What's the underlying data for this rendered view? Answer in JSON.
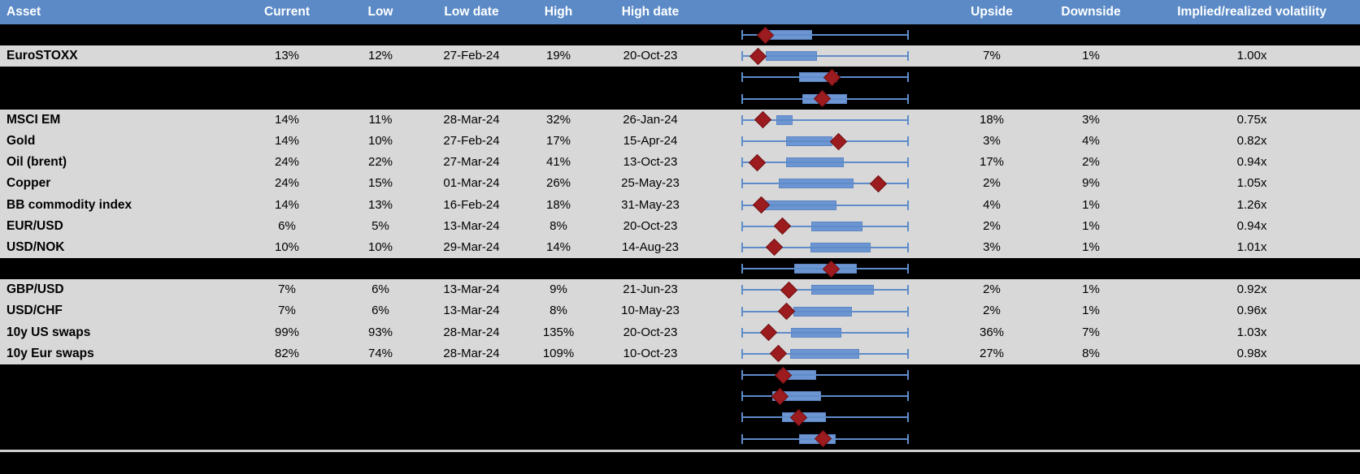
{
  "colors": {
    "header_bg": "#5B8AC7",
    "row_bg": "#D8D8D8",
    "black_bg": "#000000",
    "box_fill": "#6C95D1",
    "box_border": "#5C86C4",
    "whisker_line": "#5E8CC9",
    "marker_fill": "#9C1B1E",
    "marker_border": "#701114",
    "separator_line": "#CFCFCF",
    "text_color": "#000000",
    "header_text": "#FFFFFF"
  },
  "chart_data": {
    "type": "table",
    "embedded_chart_type": "horizontal boxplot per row; whiskers span the full low-high range (normalized 0-1); red diamond marks the current level; box_lo/box_hi/marker are fractions of the whisker span",
    "legend_position": "none",
    "grid": false,
    "columns": {
      "asset": "Asset",
      "current": "Current",
      "low": "Low",
      "low_date": "Low date",
      "high": "High",
      "high_date": "High date",
      "upside": "Upside",
      "downside": "Downside",
      "implied_realized": "Implied/realized volatility"
    },
    "rows": [
      {
        "box": {
          "lo": 0.16,
          "hi": 0.413,
          "marker": 0.141
        }
      },
      {
        "asset": "EuroSTOXX",
        "current": "13%",
        "low": "12%",
        "low_date": "27-Feb-24",
        "high": "19%",
        "high_date": "20-Oct-23",
        "upside": "7%",
        "downside": "1%",
        "implied_realized": "1.00x",
        "box": {
          "lo": 0.146,
          "hi": 0.442,
          "marker": 0.097
        }
      },
      {
        "box": {
          "lo": 0.345,
          "hi": 0.563,
          "marker": 0.539
        }
      },
      {
        "box": {
          "lo": 0.364,
          "hi": 0.621,
          "marker": 0.481
        }
      },
      {
        "asset": "MSCI EM",
        "current": "14%",
        "low": "11%",
        "low_date": "28-Mar-24",
        "high": "32%",
        "high_date": "26-Jan-24",
        "upside": "18%",
        "downside": "3%",
        "implied_realized": "0.75x",
        "box": {
          "lo": 0.209,
          "hi": 0.296,
          "marker": 0.126
        }
      },
      {
        "asset": "Gold",
        "current": "14%",
        "low": "10%",
        "low_date": "27-Feb-24",
        "high": "17%",
        "high_date": "15-Apr-24",
        "upside": "3%",
        "downside": "4%",
        "implied_realized": "0.82x",
        "box": {
          "lo": 0.267,
          "hi": 0.534,
          "marker": 0.578
        }
      },
      {
        "asset": "Oil (brent)",
        "current": "24%",
        "low": "22%",
        "low_date": "27-Mar-24",
        "high": "41%",
        "high_date": "13-Oct-23",
        "upside": "17%",
        "downside": "2%",
        "implied_realized": "0.94x",
        "box": {
          "lo": 0.267,
          "hi": 0.602,
          "marker": 0.092
        }
      },
      {
        "asset": "Copper",
        "current": "24%",
        "low": "15%",
        "low_date": "01-Mar-24",
        "high": "26%",
        "high_date": "25-May-23",
        "upside": "2%",
        "downside": "9%",
        "implied_realized": "1.05x",
        "box": {
          "lo": 0.223,
          "hi": 0.66,
          "marker": 0.82
        }
      },
      {
        "asset": "BB commodity index",
        "current": "14%",
        "low": "13%",
        "low_date": "16-Feb-24",
        "high": "18%",
        "high_date": "31-May-23",
        "upside": "4%",
        "downside": "1%",
        "implied_realized": "1.26x",
        "box": {
          "lo": 0.131,
          "hi": 0.558,
          "marker": 0.121
        }
      },
      {
        "asset": "EUR/USD",
        "current": "6%",
        "low": "5%",
        "low_date": "13-Mar-24",
        "high": "8%",
        "high_date": "20-Oct-23",
        "upside": "2%",
        "downside": "1%",
        "implied_realized": "0.94x",
        "box": {
          "lo": 0.417,
          "hi": 0.714,
          "marker": 0.243
        }
      },
      {
        "asset": "USD/NOK",
        "current": "10%",
        "low": "10%",
        "low_date": "29-Mar-24",
        "high": "14%",
        "high_date": "14-Aug-23",
        "upside": "3%",
        "downside": "1%",
        "implied_realized": "1.01x",
        "box": {
          "lo": 0.413,
          "hi": 0.762,
          "marker": 0.194
        }
      },
      {
        "box": {
          "lo": 0.316,
          "hi": 0.68,
          "marker": 0.534
        }
      },
      {
        "asset": "GBP/USD",
        "current": "7%",
        "low": "6%",
        "low_date": "13-Mar-24",
        "high": "9%",
        "high_date": "21-Jun-23",
        "upside": "2%",
        "downside": "1%",
        "implied_realized": "0.92x",
        "box": {
          "lo": 0.417,
          "hi": 0.781,
          "marker": 0.286
        }
      },
      {
        "asset": "USD/CHF",
        "current": "7%",
        "low": "6%",
        "low_date": "13-Mar-24",
        "high": "8%",
        "high_date": "10-May-23",
        "upside": "2%",
        "downside": "1%",
        "implied_realized": "0.96x",
        "box": {
          "lo": 0.311,
          "hi": 0.65,
          "marker": 0.267
        }
      },
      {
        "asset": "10y US swaps",
        "current": "99%",
        "low": "93%",
        "low_date": "28-Mar-24",
        "high": "135%",
        "high_date": "20-Oct-23",
        "upside": "36%",
        "downside": "7%",
        "implied_realized": "1.03x",
        "box": {
          "lo": 0.296,
          "hi": 0.587,
          "marker": 0.16
        }
      },
      {
        "asset": "10y Eur swaps",
        "current": "82%",
        "low": "74%",
        "low_date": "28-Mar-24",
        "high": "109%",
        "high_date": "10-Oct-23",
        "upside": "27%",
        "downside": "8%",
        "implied_realized": "0.98x",
        "box": {
          "lo": 0.291,
          "hi": 0.694,
          "marker": 0.223
        }
      },
      {
        "box": {
          "lo": 0.223,
          "hi": 0.437,
          "marker": 0.248
        }
      },
      {
        "box": {
          "lo": 0.184,
          "hi": 0.466,
          "marker": 0.228
        }
      },
      {
        "box": {
          "lo": 0.243,
          "hi": 0.495,
          "marker": 0.34
        }
      },
      {
        "box": {
          "lo": 0.345,
          "hi": 0.553,
          "marker": 0.49
        }
      }
    ]
  }
}
